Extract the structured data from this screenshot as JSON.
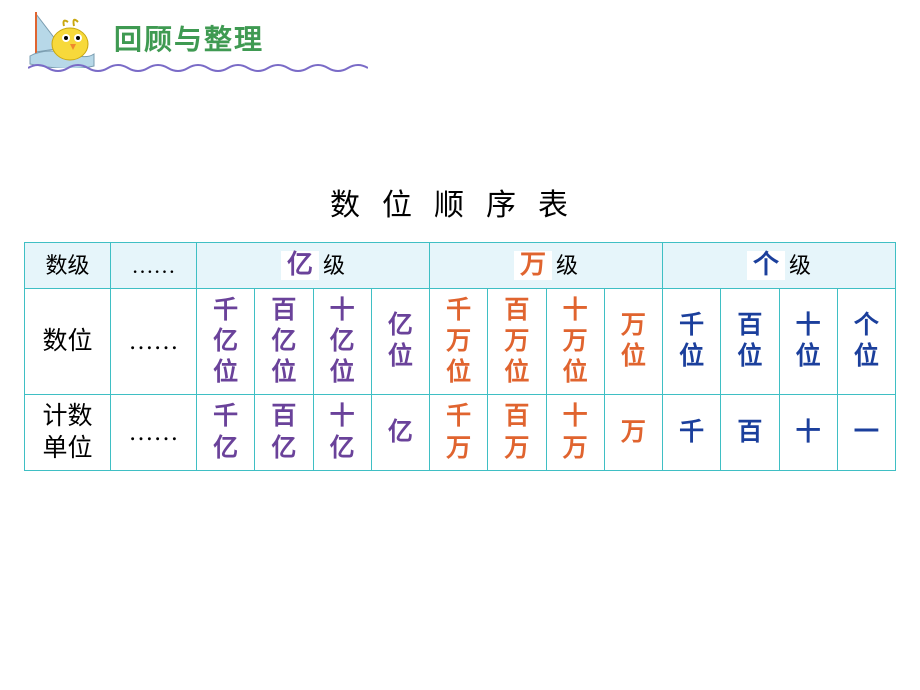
{
  "colors": {
    "header_title": "#3f9a52",
    "wave_stroke": "#7a6bc7",
    "table_border": "#3fbfc4",
    "level_bg": "#e6f5fa",
    "text_black": "#222222",
    "grp_yi": "#6a429a",
    "grp_wan": "#e0642f",
    "grp_ge": "#1b3f9c",
    "mascot_body": "#f7d93b",
    "mascot_beak": "#f08a2d",
    "sail": "#b7d8e8",
    "mast": "#e0642f"
  },
  "header": {
    "title": "回顾与整理"
  },
  "table": {
    "title": "数位顺序表",
    "level_row": {
      "label": "数级",
      "dots": "……",
      "levels": [
        {
          "highlight": "亿",
          "suffix": "级",
          "highlight_color": "#6a429a"
        },
        {
          "highlight": "万",
          "suffix": "级",
          "highlight_color": "#e0642f"
        },
        {
          "highlight": "个",
          "suffix": "级",
          "highlight_color": "#1b3f9c"
        }
      ]
    },
    "place_row": {
      "label": "数位",
      "dots": "……",
      "cells": [
        {
          "text": "千亿位",
          "color": "#6a429a"
        },
        {
          "text": "百亿位",
          "color": "#6a429a"
        },
        {
          "text": "十亿位",
          "color": "#6a429a"
        },
        {
          "text": "亿位",
          "color": "#6a429a"
        },
        {
          "text": "千万位",
          "color": "#e0642f"
        },
        {
          "text": "百万位",
          "color": "#e0642f"
        },
        {
          "text": "十万位",
          "color": "#e0642f"
        },
        {
          "text": "万位",
          "color": "#e0642f"
        },
        {
          "text": "千位",
          "color": "#1b3f9c"
        },
        {
          "text": "百位",
          "color": "#1b3f9c"
        },
        {
          "text": "十位",
          "color": "#1b3f9c"
        },
        {
          "text": "个位",
          "color": "#1b3f9c"
        }
      ]
    },
    "unit_row": {
      "label": "计数单位",
      "dots": "……",
      "cells": [
        {
          "text": "千亿",
          "color": "#6a429a"
        },
        {
          "text": "百亿",
          "color": "#6a429a"
        },
        {
          "text": "十亿",
          "color": "#6a429a"
        },
        {
          "text": "亿",
          "color": "#6a429a"
        },
        {
          "text": "千万",
          "color": "#e0642f"
        },
        {
          "text": "百万",
          "color": "#e0642f"
        },
        {
          "text": "十万",
          "color": "#e0642f"
        },
        {
          "text": "万",
          "color": "#e0642f"
        },
        {
          "text": "千",
          "color": "#1b3f9c"
        },
        {
          "text": "百",
          "color": "#1b3f9c"
        },
        {
          "text": "十",
          "color": "#1b3f9c"
        },
        {
          "text": "一",
          "color": "#1b3f9c"
        }
      ]
    }
  }
}
